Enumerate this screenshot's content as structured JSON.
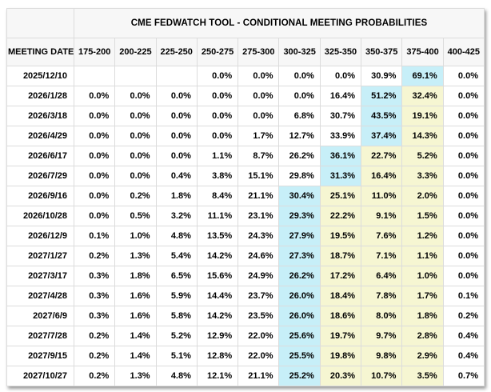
{
  "colors": {
    "highlight_current": "#c7eff8",
    "highlight_ease": "#f6f6d2",
    "header_bg": "#f7f7f7",
    "border": "#dcdcdc",
    "text": "#000000"
  },
  "header": {
    "title": "CME FEDWATCH TOOL - CONDITIONAL MEETING PROBABILITIES",
    "meeting_date_label": "MEETING DATE",
    "rate_ranges": [
      "175-200",
      "200-225",
      "225-250",
      "250-275",
      "275-300",
      "300-325",
      "325-350",
      "350-375",
      "375-400",
      "400-425"
    ]
  },
  "rows": [
    {
      "date": "2025/12/10",
      "values": [
        "",
        "",
        "",
        "0.0%",
        "0.0%",
        "0.0%",
        "0.0%",
        "30.9%",
        "69.1%",
        "0.0%"
      ],
      "cyan": 8,
      "yellow": []
    },
    {
      "date": "2026/1/28",
      "values": [
        "0.0%",
        "0.0%",
        "0.0%",
        "0.0%",
        "0.0%",
        "0.0%",
        "16.4%",
        "51.2%",
        "32.4%",
        "0.0%"
      ],
      "cyan": 7,
      "yellow": [
        8
      ]
    },
    {
      "date": "2026/3/18",
      "values": [
        "0.0%",
        "0.0%",
        "0.0%",
        "0.0%",
        "0.0%",
        "6.8%",
        "30.7%",
        "43.5%",
        "19.1%",
        "0.0%"
      ],
      "cyan": 7,
      "yellow": [
        8
      ]
    },
    {
      "date": "2026/4/29",
      "values": [
        "0.0%",
        "0.0%",
        "0.0%",
        "0.0%",
        "1.7%",
        "12.7%",
        "33.9%",
        "37.4%",
        "14.3%",
        "0.0%"
      ],
      "cyan": 7,
      "yellow": [
        8
      ]
    },
    {
      "date": "2026/6/17",
      "values": [
        "0.0%",
        "0.0%",
        "0.0%",
        "1.1%",
        "8.7%",
        "26.2%",
        "36.1%",
        "22.7%",
        "5.2%",
        "0.0%"
      ],
      "cyan": 6,
      "yellow": [
        7,
        8
      ]
    },
    {
      "date": "2026/7/29",
      "values": [
        "0.0%",
        "0.0%",
        "0.4%",
        "3.8%",
        "15.1%",
        "29.8%",
        "31.3%",
        "16.4%",
        "3.3%",
        "0.0%"
      ],
      "cyan": 6,
      "yellow": [
        7,
        8
      ]
    },
    {
      "date": "2026/9/16",
      "values": [
        "0.0%",
        "0.2%",
        "1.8%",
        "8.4%",
        "21.1%",
        "30.4%",
        "25.1%",
        "11.0%",
        "2.0%",
        "0.0%"
      ],
      "cyan": 5,
      "yellow": [
        6,
        7,
        8
      ]
    },
    {
      "date": "2026/10/28",
      "values": [
        "0.0%",
        "0.5%",
        "3.2%",
        "11.1%",
        "23.1%",
        "29.3%",
        "22.2%",
        "9.1%",
        "1.5%",
        "0.0%"
      ],
      "cyan": 5,
      "yellow": [
        6,
        7,
        8
      ]
    },
    {
      "date": "2026/12/9",
      "values": [
        "0.1%",
        "1.0%",
        "4.8%",
        "13.5%",
        "24.3%",
        "27.9%",
        "19.5%",
        "7.6%",
        "1.2%",
        "0.0%"
      ],
      "cyan": 5,
      "yellow": [
        6,
        7,
        8
      ]
    },
    {
      "date": "2027/1/27",
      "values": [
        "0.2%",
        "1.3%",
        "5.4%",
        "14.2%",
        "24.6%",
        "27.3%",
        "18.7%",
        "7.1%",
        "1.1%",
        "0.0%"
      ],
      "cyan": 5,
      "yellow": [
        6,
        7,
        8
      ]
    },
    {
      "date": "2027/3/17",
      "values": [
        "0.3%",
        "1.8%",
        "6.5%",
        "15.6%",
        "24.9%",
        "26.2%",
        "17.2%",
        "6.4%",
        "1.0%",
        "0.0%"
      ],
      "cyan": 5,
      "yellow": [
        6,
        7,
        8
      ]
    },
    {
      "date": "2027/4/28",
      "values": [
        "0.3%",
        "1.6%",
        "5.9%",
        "14.4%",
        "23.7%",
        "26.0%",
        "18.4%",
        "7.8%",
        "1.7%",
        "0.1%"
      ],
      "cyan": 5,
      "yellow": [
        6,
        7,
        8
      ]
    },
    {
      "date": "2027/6/9",
      "values": [
        "0.3%",
        "1.6%",
        "5.8%",
        "14.2%",
        "23.5%",
        "26.0%",
        "18.6%",
        "8.0%",
        "1.8%",
        "0.2%"
      ],
      "cyan": 5,
      "yellow": [
        6,
        7,
        8
      ]
    },
    {
      "date": "2027/7/28",
      "values": [
        "0.2%",
        "1.4%",
        "5.2%",
        "12.9%",
        "22.0%",
        "25.6%",
        "19.7%",
        "9.7%",
        "2.8%",
        "0.4%"
      ],
      "cyan": 5,
      "yellow": [
        6,
        7,
        8
      ]
    },
    {
      "date": "2027/9/15",
      "values": [
        "0.2%",
        "1.4%",
        "5.1%",
        "12.8%",
        "22.0%",
        "25.5%",
        "19.8%",
        "9.8%",
        "2.9%",
        "0.4%"
      ],
      "cyan": 5,
      "yellow": [
        6,
        7,
        8
      ]
    },
    {
      "date": "2027/10/27",
      "values": [
        "0.2%",
        "1.3%",
        "4.8%",
        "12.1%",
        "21.1%",
        "25.2%",
        "20.3%",
        "10.7%",
        "3.5%",
        "0.7%"
      ],
      "cyan": 5,
      "yellow": [
        6,
        7,
        8
      ]
    }
  ]
}
